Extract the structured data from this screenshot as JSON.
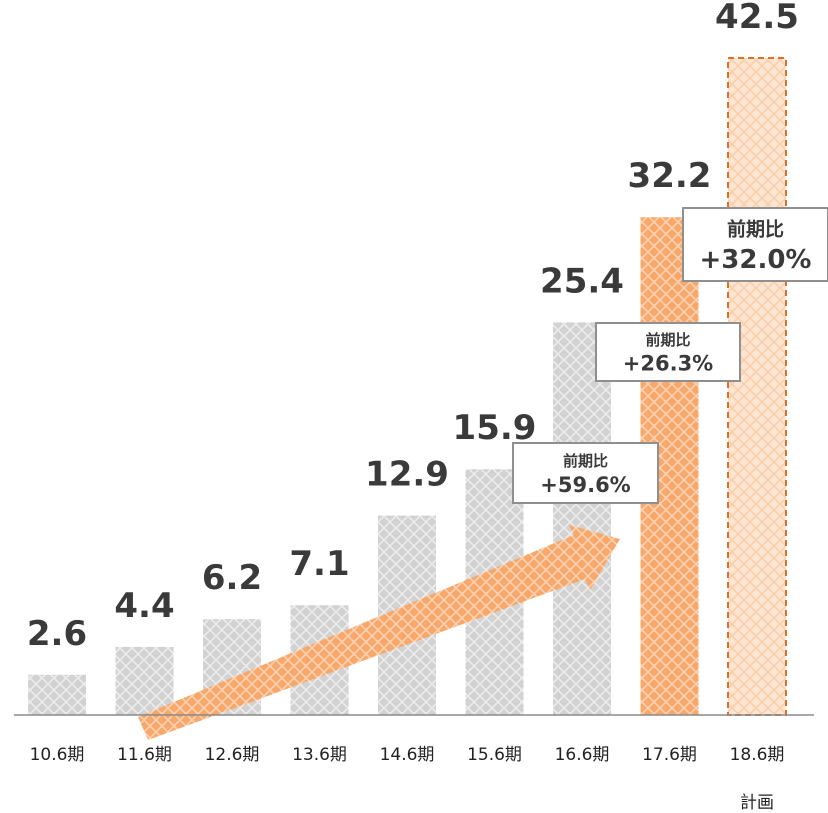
{
  "chart_data": {
    "type": "bar",
    "categories": [
      "10.6期",
      "11.6期",
      "12.6期",
      "13.6期",
      "14.6期",
      "15.6期",
      "16.6期",
      "17.6期",
      "18.6期"
    ],
    "values": [
      2.6,
      4.4,
      6.2,
      7.1,
      12.9,
      15.9,
      25.4,
      32.2,
      42.5
    ],
    "value_labels": [
      "2.6",
      "4.4",
      "6.2",
      "7.1",
      "12.9",
      "15.9",
      "25.4",
      "32.2",
      "42.5"
    ],
    "ylim": [
      0,
      42.5
    ],
    "grid": false,
    "bar_styles": [
      "gray",
      "gray",
      "gray",
      "gray",
      "gray",
      "gray",
      "gray",
      "orange",
      "orange-dashed"
    ],
    "plan_note": "計画",
    "annotations": [
      {
        "category": "16.6期",
        "title": "前期比",
        "value": "+59.6%"
      },
      {
        "category": "17.6期",
        "title": "前期比",
        "value": "+26.3%"
      },
      {
        "category": "18.6期",
        "title": "前期比",
        "value": "+32.0%"
      }
    ],
    "trend_arrow": true
  },
  "colors": {
    "gray_bar": "#d4d4d4",
    "orange_bar": "#f7a86a",
    "orange_light": "#fbd0ae",
    "dashed_border": "#d9722b",
    "text": "#3a3a3a",
    "axis": "#888888"
  }
}
